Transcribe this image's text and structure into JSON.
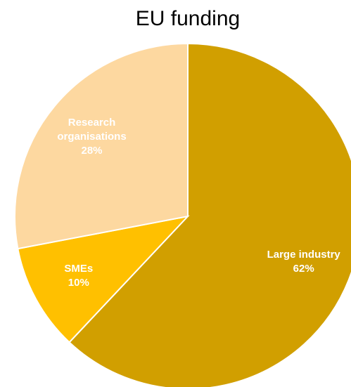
{
  "chart_data": {
    "type": "pie",
    "title": "EU funding",
    "categories": [
      "Large industry",
      "SMEs",
      "Research organisations"
    ],
    "values": [
      62,
      10,
      28
    ],
    "value_labels": [
      "62%",
      "10%",
      "28%"
    ],
    "colors": [
      "#d19f00",
      "#ffc000",
      "#fdd8a0"
    ]
  }
}
